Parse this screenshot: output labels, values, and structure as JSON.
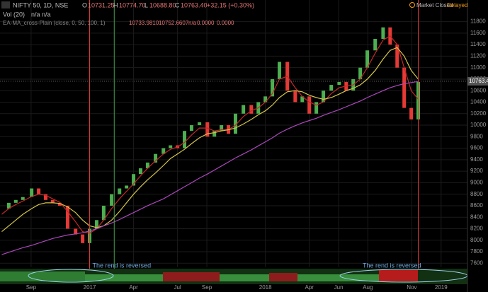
{
  "header": {
    "symbol": "NIFTY 50, 1D, NSE",
    "ohlc": [
      "O",
      "10731.25",
      "H",
      "10774.70",
      "L",
      "10688.80",
      "C",
      "10763.40",
      "+32.15 (+0.30%)"
    ],
    "vol": "Vol (20)",
    "vol_values": "n/a  n/a",
    "indicator": "EA-MA_cross-Plain (close, 0, 50, 100, 1)",
    "indicator_values": [
      "10733.9810",
      "10752.6607",
      "n/a",
      "0.0000",
      "0.0000"
    ],
    "market": "Market Closed",
    "status": "Delayed"
  },
  "chart_data": {
    "type": "candlestick",
    "x": [
      2016.5,
      2016.54,
      2016.58,
      2016.62,
      2016.67,
      2016.71,
      2016.75,
      2016.79,
      2016.83,
      2016.875,
      2016.92,
      2016.96,
      2017.0,
      2017.04,
      2017.08,
      2017.125,
      2017.17,
      2017.21,
      2017.25,
      2017.29,
      2017.33,
      2017.375,
      2017.42,
      2017.46,
      2017.5,
      2017.54,
      2017.58,
      2017.625,
      2017.67,
      2017.71,
      2017.75,
      2017.79,
      2017.83,
      2017.875,
      2017.92,
      2017.96,
      2018.0,
      2018.04,
      2018.08,
      2018.125,
      2018.17,
      2018.21,
      2018.25,
      2018.29,
      2018.33,
      2018.375,
      2018.42,
      2018.46,
      2018.5,
      2018.54,
      2018.58,
      2018.625,
      2018.67,
      2018.71,
      2018.75,
      2018.79,
      2018.83,
      2018.87
    ],
    "series": [
      {
        "name": "Price",
        "up_color": "#4caf50",
        "down_color": "#e53935",
        "values": [
          8550,
          8650,
          8700,
          8750,
          8900,
          8800,
          8700,
          8650,
          8600,
          8200,
          8100,
          7950,
          8200,
          8350,
          8600,
          8800,
          8900,
          8950,
          9150,
          9250,
          9350,
          9500,
          9600,
          9650,
          9600,
          9900,
          10000,
          10050,
          9800,
          9900,
          10000,
          9850,
          10200,
          10350,
          10200,
          10400,
          10500,
          10800,
          11100,
          10600,
          10400,
          10500,
          10200,
          10400,
          10600,
          10700,
          10750,
          10600,
          10800,
          11000,
          11300,
          11500,
          11700,
          11400,
          11000,
          10300,
          10100,
          10750
        ]
      },
      {
        "name": "MA 20",
        "color": "#c62828",
        "values": [
          8450,
          8550,
          8620,
          8680,
          8760,
          8800,
          8780,
          8720,
          8660,
          8500,
          8320,
          8150,
          8120,
          8200,
          8350,
          8550,
          8720,
          8850,
          8980,
          9120,
          9250,
          9380,
          9500,
          9580,
          9620,
          9700,
          9830,
          9950,
          9950,
          9900,
          9920,
          9920,
          10000,
          10150,
          10250,
          10300,
          10400,
          10550,
          10800,
          10850,
          10650,
          10500,
          10400,
          10350,
          10400,
          10550,
          10650,
          10680,
          10700,
          10800,
          11000,
          11250,
          11480,
          11550,
          11400,
          11000,
          10600,
          10450
        ]
      },
      {
        "name": "MA 50",
        "color": "#d4c44a",
        "values": [
          8150,
          8250,
          8350,
          8450,
          8550,
          8620,
          8650,
          8650,
          8640,
          8580,
          8480,
          8350,
          8250,
          8220,
          8250,
          8350,
          8500,
          8650,
          8800,
          8930,
          9050,
          9170,
          9300,
          9420,
          9500,
          9580,
          9680,
          9780,
          9850,
          9870,
          9900,
          9920,
          9950,
          10020,
          10100,
          10180,
          10250,
          10350,
          10480,
          10580,
          10600,
          10580,
          10520,
          10480,
          10450,
          10480,
          10540,
          10600,
          10640,
          10700,
          10800,
          10950,
          11150,
          11300,
          11350,
          11200,
          10950,
          10800
        ]
      },
      {
        "name": "MA 200",
        "color": "#ab47bc",
        "values": [
          7750,
          7790,
          7830,
          7870,
          7910,
          7950,
          7990,
          8030,
          8060,
          8090,
          8110,
          8130,
          8160,
          8200,
          8250,
          8300,
          8360,
          8420,
          8480,
          8540,
          8600,
          8660,
          8720,
          8790,
          8860,
          8930,
          9000,
          9080,
          9150,
          9220,
          9290,
          9360,
          9430,
          9500,
          9570,
          9640,
          9710,
          9780,
          9860,
          9930,
          9990,
          10040,
          10080,
          10120,
          10170,
          10220,
          10270,
          10320,
          10370,
          10420,
          10480,
          10540,
          10600,
          10650,
          10690,
          10720,
          10740,
          10760
        ]
      }
    ],
    "xlim": [
      2016.49,
      2019.15
    ],
    "xticks": [
      {
        "value": 2016.667,
        "label": "Sep"
      },
      {
        "value": 2017.0,
        "label": "2017"
      },
      {
        "value": 2017.25,
        "label": "Apr"
      },
      {
        "value": 2017.5,
        "label": "Jul"
      },
      {
        "value": 2017.667,
        "label": "Sep"
      },
      {
        "value": 2018.0,
        "label": "2018"
      },
      {
        "value": 2018.25,
        "label": "Apr"
      },
      {
        "value": 2018.417,
        "label": "Jun"
      },
      {
        "value": 2018.583,
        "label": "Aug"
      },
      {
        "value": 2018.833,
        "label": "Nov"
      },
      {
        "value": 2019.0,
        "label": "2019"
      }
    ],
    "ylim": [
      7530,
      11930
    ],
    "yticks": [
      7600,
      7800,
      8000,
      8200,
      8400,
      8600,
      8800,
      9000,
      9200,
      9400,
      9600,
      9800,
      10000,
      10200,
      10400,
      10600,
      10800,
      11000,
      11200,
      11400,
      11600,
      11800
    ],
    "grid": true,
    "last_price": {
      "value": 10763.4,
      "label": "10763.40"
    },
    "markers": [
      {
        "x": 2017.0,
        "color": "#e53935"
      },
      {
        "x": 2017.14,
        "color": "#43a047"
      },
      {
        "x": 2018.87,
        "color": "#e53935"
      }
    ],
    "annotations": [
      {
        "x": 2017.0,
        "text": "The rend is reversed"
      },
      {
        "x": 2018.87,
        "text": "The rend is reversed"
      }
    ]
  }
}
